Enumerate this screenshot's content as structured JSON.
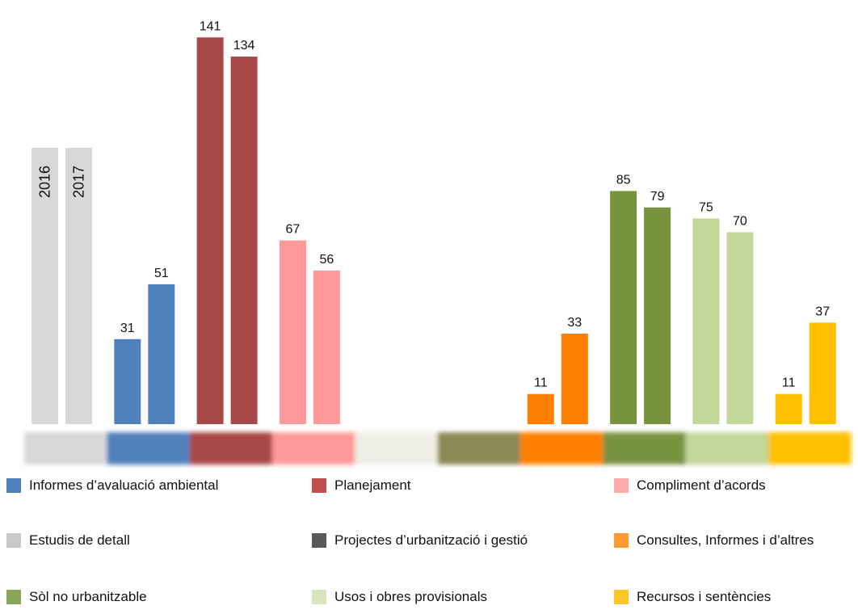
{
  "chart_data": {
    "type": "bar",
    "title": "",
    "xlabel": "",
    "ylabel": "",
    "ylim": [
      0,
      145
    ],
    "grid": false,
    "legend_position": "bottom",
    "series_labels": [
      "2016",
      "2017"
    ],
    "categories": [
      {
        "name": "Estudis de detall",
        "color": "#d8d8d8",
        "values": [
          null,
          null
        ]
      },
      {
        "name": "Informes d’avaluació ambiental",
        "color": "#4f81bd",
        "values": [
          31,
          51
        ]
      },
      {
        "name": "Planejament",
        "color": "#a84747",
        "values": [
          141,
          134
        ]
      },
      {
        "name": "Compliment d’acords",
        "color": "#ff9999",
        "values": [
          67,
          56
        ]
      },
      {
        "name": "",
        "color": "#efefe6",
        "values": [
          null,
          null
        ]
      },
      {
        "name": "Projectes d’urbanització i gestió",
        "color": "#8e8a55",
        "values": [
          null,
          null
        ]
      },
      {
        "name": "Consultes, Informes i d’altres",
        "color": "#ff8000",
        "values": [
          11,
          33
        ]
      },
      {
        "name": "Sòl no urbanitzable",
        "color": "#77933c",
        "values": [
          85,
          79
        ]
      },
      {
        "name": "Usos i obres provisionals",
        "color": "#c4d79b",
        "values": [
          75,
          70
        ]
      },
      {
        "name": "Recursos i sentències",
        "color": "#ffc000",
        "values": [
          11,
          37
        ]
      }
    ],
    "legend": [
      {
        "label": "Informes d’avaluació ambiental",
        "color": "#4f81bd"
      },
      {
        "label": "Planejament",
        "color": "#c0504d"
      },
      {
        "label": "Compliment d’acords",
        "color": "#ffaaaa"
      },
      {
        "label": "Estudis de detall",
        "color": "#c8c8c8"
      },
      {
        "label": "Projectes d’urbanització i gestió",
        "color": "#595959"
      },
      {
        "label": "Consultes, Informes i d’altres",
        "color": "#ff9933"
      },
      {
        "label": "Sòl no urbanitzable",
        "color": "#8aa65a"
      },
      {
        "label": "Usos i obres provisionals",
        "color": "#d7e4bd"
      },
      {
        "label": "Recursos i sentències",
        "color": "#ffc629"
      }
    ]
  }
}
